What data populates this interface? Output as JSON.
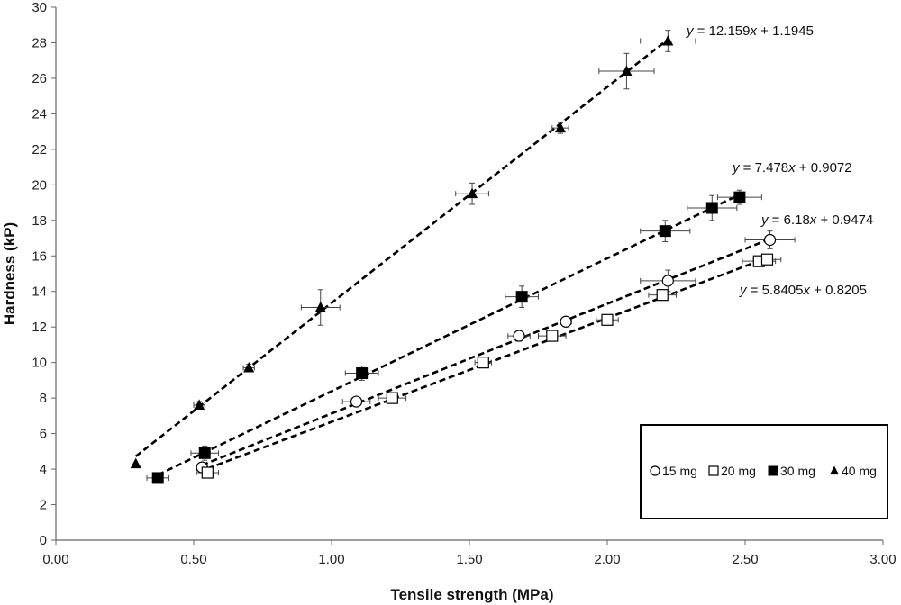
{
  "chart_data": {
    "type": "scatter",
    "xlabel": "Tensile strength (MPa)",
    "ylabel": "Hardness (kP)",
    "xlim": [
      0,
      3
    ],
    "ylim": [
      0,
      30
    ],
    "x_ticks": [
      "0.00",
      "0.50",
      "1.00",
      "1.50",
      "2.00",
      "2.50",
      "3.00"
    ],
    "y_ticks": [
      "0",
      "2",
      "4",
      "6",
      "8",
      "10",
      "12",
      "14",
      "16",
      "18",
      "20",
      "22",
      "24",
      "26",
      "28",
      "30"
    ],
    "grid": false,
    "legend_position": "bottom-right",
    "series": [
      {
        "name": "15 mg",
        "marker": "circle-open",
        "trendline": {
          "slope": 6.18,
          "intercept": 0.9474,
          "label": "6.18x + 0.9474",
          "x_range": [
            0.53,
            2.59
          ]
        },
        "points": [
          {
            "x": 0.53,
            "y": 4.1,
            "xerr": 0.02,
            "yerr": 0.2
          },
          {
            "x": 1.09,
            "y": 7.8,
            "xerr": 0.05,
            "yerr": 0.2
          },
          {
            "x": 1.68,
            "y": 11.5,
            "xerr": 0.04,
            "yerr": 0.3
          },
          {
            "x": 1.85,
            "y": 12.3,
            "xerr": 0.02,
            "yerr": 0.2
          },
          {
            "x": 2.22,
            "y": 14.6,
            "xerr": 0.1,
            "yerr": 0.6
          },
          {
            "x": 2.59,
            "y": 16.9,
            "xerr": 0.09,
            "yerr": 0.5
          }
        ]
      },
      {
        "name": "20 mg",
        "marker": "square-open",
        "trendline": {
          "slope": 5.8405,
          "intercept": 0.8205,
          "label": "5.8405x + 0.8205",
          "x_range": [
            0.55,
            2.58
          ]
        },
        "points": [
          {
            "x": 0.55,
            "y": 3.8,
            "xerr": 0.04,
            "yerr": 0.2
          },
          {
            "x": 1.22,
            "y": 8.0,
            "xerr": 0.05,
            "yerr": 0.2
          },
          {
            "x": 1.55,
            "y": 10.0,
            "xerr": 0.03,
            "yerr": 0.3
          },
          {
            "x": 1.8,
            "y": 11.5,
            "xerr": 0.05,
            "yerr": 0.2
          },
          {
            "x": 2.0,
            "y": 12.4,
            "xerr": 0.04,
            "yerr": 0.2
          },
          {
            "x": 2.2,
            "y": 13.8,
            "xerr": 0.05,
            "yerr": 0.2
          },
          {
            "x": 2.55,
            "y": 15.7,
            "xerr": 0.06,
            "yerr": 0.2
          },
          {
            "x": 2.58,
            "y": 15.8,
            "xerr": 0.05,
            "yerr": 0.2
          }
        ]
      },
      {
        "name": "30 mg",
        "marker": "square-filled",
        "trendline": {
          "slope": 7.478,
          "intercept": 0.9072,
          "label": "7.478x + 0.9072",
          "x_range": [
            0.37,
            2.48
          ]
        },
        "points": [
          {
            "x": 0.37,
            "y": 3.5,
            "xerr": 0.04,
            "yerr": 0.1
          },
          {
            "x": 0.54,
            "y": 4.9,
            "xerr": 0.05,
            "yerr": 0.4
          },
          {
            "x": 1.11,
            "y": 9.4,
            "xerr": 0.06,
            "yerr": 0.4
          },
          {
            "x": 1.69,
            "y": 13.7,
            "xerr": 0.06,
            "yerr": 0.6
          },
          {
            "x": 2.21,
            "y": 17.4,
            "xerr": 0.09,
            "yerr": 0.6
          },
          {
            "x": 2.38,
            "y": 18.7,
            "xerr": 0.09,
            "yerr": 0.7
          },
          {
            "x": 2.48,
            "y": 19.3,
            "xerr": 0.08,
            "yerr": 0.4
          }
        ]
      },
      {
        "name": "40 mg",
        "marker": "triangle-filled",
        "trendline": {
          "slope": 12.159,
          "intercept": 1.1945,
          "label": "12.159x + 1.1945",
          "x_range": [
            0.29,
            2.22
          ]
        },
        "points": [
          {
            "x": 0.29,
            "y": 4.3,
            "xerr": 0.0,
            "yerr": 0.0
          },
          {
            "x": 0.52,
            "y": 7.6,
            "xerr": 0.02,
            "yerr": 0.2
          },
          {
            "x": 0.7,
            "y": 9.7,
            "xerr": 0.02,
            "yerr": 0.2
          },
          {
            "x": 0.96,
            "y": 13.1,
            "xerr": 0.07,
            "yerr": 1.0
          },
          {
            "x": 1.51,
            "y": 19.5,
            "xerr": 0.06,
            "yerr": 0.6
          },
          {
            "x": 1.83,
            "y": 23.2,
            "xerr": 0.03,
            "yerr": 0.3
          },
          {
            "x": 2.07,
            "y": 26.4,
            "xerr": 0.1,
            "yerr": 1.0
          },
          {
            "x": 2.22,
            "y": 28.1,
            "xerr": 0.1,
            "yerr": 0.6
          }
        ]
      }
    ]
  }
}
